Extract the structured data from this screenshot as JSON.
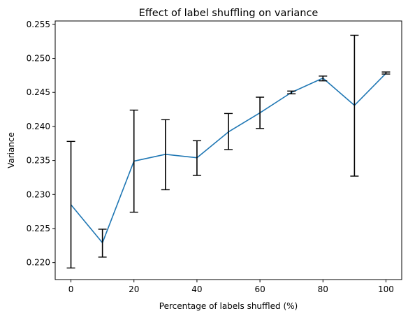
{
  "chart_data": {
    "type": "line",
    "title": "Effect of label shuffling on variance",
    "xlabel": "Percentage of labels shuffled (%)",
    "ylabel": "Variance",
    "xlim": [
      -5,
      105
    ],
    "ylim": [
      0.2175,
      0.2555
    ],
    "x_ticks": [
      0,
      20,
      40,
      60,
      80,
      100
    ],
    "y_ticks": [
      0.22,
      0.225,
      0.23,
      0.235,
      0.24,
      0.245,
      0.25,
      0.255
    ],
    "grid": false,
    "series": [
      {
        "color": "#1f77b4",
        "error_bar_color": "#000000",
        "points": [
          {
            "x": 0,
            "y": 0.2285,
            "low": 0.2192,
            "high": 0.2378
          },
          {
            "x": 10,
            "y": 0.2229,
            "low": 0.2208,
            "high": 0.2249
          },
          {
            "x": 20,
            "y": 0.2349,
            "low": 0.2274,
            "high": 0.2424
          },
          {
            "x": 30,
            "y": 0.2359,
            "low": 0.2307,
            "high": 0.241
          },
          {
            "x": 40,
            "y": 0.2354,
            "low": 0.2328,
            "high": 0.2379
          },
          {
            "x": 50,
            "y": 0.2392,
            "low": 0.2366,
            "high": 0.2419
          },
          {
            "x": 60,
            "y": 0.242,
            "low": 0.2397,
            "high": 0.2443
          },
          {
            "x": 70,
            "y": 0.245,
            "low": 0.2448,
            "high": 0.2452
          },
          {
            "x": 80,
            "y": 0.2471,
            "low": 0.2467,
            "high": 0.2474
          },
          {
            "x": 90,
            "y": 0.2431,
            "low": 0.2327,
            "high": 0.2534
          },
          {
            "x": 100,
            "y": 0.2478,
            "low": 0.2477,
            "high": 0.248
          }
        ]
      }
    ]
  }
}
